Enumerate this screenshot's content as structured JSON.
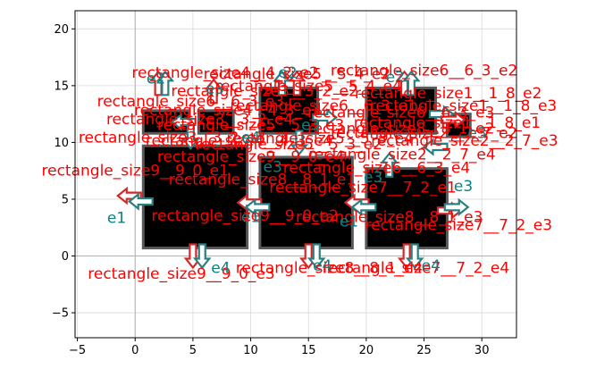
{
  "chart_data": {
    "type": "diagram",
    "grid": true,
    "xlim": [
      -5.2,
      33.0
    ],
    "ylim": [
      -7.2,
      21.6
    ],
    "xticks": [
      "−5",
      "0",
      "5",
      "10",
      "15",
      "20",
      "25",
      "30"
    ],
    "xtick_values": [
      -5,
      0,
      5,
      10,
      15,
      20,
      25,
      30
    ],
    "yticks": [
      "−5",
      "0",
      "5",
      "10",
      "15",
      "20"
    ],
    "ytick_values": [
      -5,
      0,
      5,
      10,
      15,
      20
    ],
    "colors": {
      "rect_fill": "#000000",
      "rect_edge": "#595959",
      "label": "#ff0000",
      "edge_label": "#0f7f7f",
      "arrow_red": "#d62728",
      "arrow_teal": "#2a8080",
      "grid": "#d9d9d9"
    },
    "rectangles": [
      {
        "x0": 0.7,
        "y0": 0.7,
        "x1": 9.7,
        "y1": 9.7
      },
      {
        "x0": 10.8,
        "y0": 0.7,
        "x1": 18.8,
        "y1": 8.7
      },
      {
        "x0": 20.0,
        "y0": 0.7,
        "x1": 27.0,
        "y1": 7.7
      },
      {
        "x0": 20.0,
        "y0": 10.8,
        "x1": 26.0,
        "y1": 14.8
      },
      {
        "x0": 10.8,
        "y0": 10.8,
        "x1": 15.8,
        "y1": 14.8
      },
      {
        "x0": 0.7,
        "y0": 10.8,
        "x1": 4.7,
        "y1": 12.8
      },
      {
        "x0": 5.5,
        "y0": 10.8,
        "x1": 8.5,
        "y1": 12.8
      },
      {
        "x0": 27.0,
        "y0": 10.5,
        "x1": 29.0,
        "y1": 12.5
      }
    ],
    "arrows": [
      {
        "x": -0.5,
        "y": 5.3,
        "dir": "left",
        "color": "red"
      },
      {
        "x": 0.5,
        "y": 4.8,
        "dir": "left",
        "color": "teal"
      },
      {
        "x": 5.0,
        "y": 0.0,
        "dir": "down",
        "color": "red"
      },
      {
        "x": 5.8,
        "y": 0.0,
        "dir": "down",
        "color": "teal"
      },
      {
        "x": 9.9,
        "y": 4.7,
        "dir": "left",
        "color": "red"
      },
      {
        "x": 10.6,
        "y": 4.3,
        "dir": "left",
        "color": "teal"
      },
      {
        "x": 15.0,
        "y": 0.0,
        "dir": "down",
        "color": "red"
      },
      {
        "x": 15.7,
        "y": 0.0,
        "dir": "down",
        "color": "teal"
      },
      {
        "x": 19.2,
        "y": 4.7,
        "dir": "left",
        "color": "red"
      },
      {
        "x": 19.8,
        "y": 4.3,
        "dir": "left",
        "color": "teal"
      },
      {
        "x": 23.5,
        "y": 0.0,
        "dir": "down",
        "color": "red"
      },
      {
        "x": 24.2,
        "y": 0.0,
        "dir": "down",
        "color": "teal"
      },
      {
        "x": 27.2,
        "y": 4.0,
        "dir": "right",
        "color": "red"
      },
      {
        "x": 27.8,
        "y": 4.3,
        "dir": "right",
        "color": "teal"
      },
      {
        "x": 2.0,
        "y": 15.2,
        "dir": "up",
        "color": "red"
      },
      {
        "x": 2.6,
        "y": 15.2,
        "dir": "up",
        "color": "teal"
      },
      {
        "x": 6.8,
        "y": 14.5,
        "dir": "up",
        "color": "red"
      },
      {
        "x": 12.7,
        "y": 15.2,
        "dir": "up",
        "color": "teal"
      },
      {
        "x": 14.0,
        "y": 15.2,
        "dir": "up",
        "color": "red"
      },
      {
        "x": 23.3,
        "y": 15.2,
        "dir": "up",
        "color": "red"
      },
      {
        "x": 23.9,
        "y": 15.2,
        "dir": "up",
        "color": "teal"
      },
      {
        "x": 26.5,
        "y": 12.5,
        "dir": "right",
        "color": "teal"
      },
      {
        "x": 27.5,
        "y": 12.0,
        "dir": "right",
        "color": "red"
      },
      {
        "x": 26.0,
        "y": 9.6,
        "dir": "left",
        "color": "teal"
      },
      {
        "x": 4.2,
        "y": 11.8,
        "dir": "left",
        "color": "teal"
      },
      {
        "x": 4.8,
        "y": 10.5,
        "dir": "down",
        "color": "teal"
      },
      {
        "x": 16.4,
        "y": 12.2,
        "dir": "right",
        "color": "teal"
      },
      {
        "x": 14.2,
        "y": 10.0,
        "dir": "down",
        "color": "teal"
      },
      {
        "x": 22.0,
        "y": 8.0,
        "dir": "up",
        "color": "teal"
      }
    ],
    "labels": [
      {
        "text": "rectangle_size4__4_2_e2",
        "x": 7.8,
        "y": 15.7,
        "color": "red"
      },
      {
        "text": "rectangle_size5__5_4_e2",
        "x": 14.0,
        "y": 15.6,
        "color": "red"
      },
      {
        "text": "e2",
        "x": 13.2,
        "y": 15.7,
        "color": "teal"
      },
      {
        "text": "rectangle_size6__6_3_e2",
        "x": 25.0,
        "y": 15.9,
        "color": "red"
      },
      {
        "text": "e2",
        "x": 1.8,
        "y": 15.2,
        "color": "teal"
      },
      {
        "text": "e2",
        "x": 22.5,
        "y": 15.3,
        "color": "teal"
      },
      {
        "text": "rectangle_size3__3_2_e2",
        "x": 11.2,
        "y": 14.1,
        "color": "red"
      },
      {
        "text": "e3",
        "x": 6.9,
        "y": 14.3,
        "color": "teal"
      },
      {
        "text": "rectangle_size6__6_3_e3",
        "x": 4.8,
        "y": 13.2,
        "color": "red"
      },
      {
        "text": "rectangle_size4__4_3_e3",
        "x": 8.0,
        "y": 12.4,
        "color": "red"
      },
      {
        "text": "rectangle_size5__5_3_e3",
        "x": 10.0,
        "y": 11.1,
        "color": "red"
      },
      {
        "text": "rectangle_size3__3_2_e4",
        "x": 5.6,
        "y": 11.6,
        "color": "red"
      },
      {
        "text": "rectangle_size4__4_3_e4",
        "x": 9.0,
        "y": 9.7,
        "color": "red"
      },
      {
        "text": "rectangle_size3__3_2_e3",
        "x": 3.2,
        "y": 10.0,
        "color": "red"
      },
      {
        "text": "rectangle_size9__9_0_e4",
        "x": 10.0,
        "y": 8.3,
        "color": "red"
      },
      {
        "text": "rectangle_size8__8_1_e1",
        "x": 11.0,
        "y": 6.3,
        "color": "red"
      },
      {
        "text": "rectangle_size7__7_2_e1",
        "x": 19.7,
        "y": 5.6,
        "color": "red"
      },
      {
        "text": "rectangle_size9__9_0_e1",
        "x": 0.0,
        "y": 7.1,
        "color": "red"
      },
      {
        "text": "rectangle_size5__5_3_e4",
        "x": 16.0,
        "y": 9.9,
        "color": "red"
      },
      {
        "text": "rectangle_size6__6_3_e1",
        "x": 16.3,
        "y": 12.8,
        "color": "red"
      },
      {
        "text": "rectangle_size5__5_3_e2",
        "x": 13.3,
        "y": 9.4,
        "color": "red"
      },
      {
        "text": "rectangle_size1__1_8_e2",
        "x": 27.1,
        "y": 13.9,
        "color": "red"
      },
      {
        "text": "rectangle_size1__1_8_e3",
        "x": 28.4,
        "y": 12.8,
        "color": "red"
      },
      {
        "text": "rectangle_size1__1_8_e1",
        "x": 27.0,
        "y": 11.3,
        "color": "red"
      },
      {
        "text": "rectangle_size2__2_7_e3",
        "x": 28.5,
        "y": 9.7,
        "color": "red"
      },
      {
        "text": "rectangle_size2__2_7_e4",
        "x": 23.1,
        "y": 8.5,
        "color": "red"
      },
      {
        "text": "rectangle_size2__2_7_e2",
        "x": 25.0,
        "y": 10.4,
        "color": "red"
      },
      {
        "text": "rectangle_size6__6_3_e4",
        "x": 20.9,
        "y": 7.3,
        "color": "red"
      },
      {
        "text": "rectangle_size8__8_1_e2",
        "x": 23.0,
        "y": 10.8,
        "color": "red"
      },
      {
        "text": "rectangle_size8__8_1_e3",
        "x": 22.0,
        "y": 3.0,
        "color": "red"
      },
      {
        "text": "rectangle_size7__7_2_e3",
        "x": 28.0,
        "y": 2.3,
        "color": "red"
      },
      {
        "text": "rectangle_size7__7_2_e4",
        "x": 24.3,
        "y": -1.5,
        "color": "red"
      },
      {
        "text": "rectangle_size8__8_1_e4",
        "x": 16.8,
        "y": -1.5,
        "color": "red"
      },
      {
        "text": "rectangle_size9__9_0_e2",
        "x": 9.5,
        "y": 3.1,
        "color": "red"
      },
      {
        "text": "rectangle_size9__9_0_e3",
        "x": 4.0,
        "y": -2.0,
        "color": "red"
      },
      {
        "text": "rectangle_size5__5_4_e4",
        "x": 15.0,
        "y": 14.5,
        "color": "red"
      },
      {
        "text": "rectangle_size6__6_3_e3",
        "x": 23.0,
        "y": 12.2,
        "color": "red"
      },
      {
        "text": "e1",
        "x": -1.6,
        "y": 2.9,
        "color": "teal"
      },
      {
        "text": "e4",
        "x": 7.4,
        "y": -1.5,
        "color": "teal"
      },
      {
        "text": "e3",
        "x": 11.9,
        "y": 7.4,
        "color": "teal"
      },
      {
        "text": "e1",
        "x": 10.0,
        "y": 3.0,
        "color": "teal"
      },
      {
        "text": "e4",
        "x": 16.2,
        "y": -1.3,
        "color": "teal"
      },
      {
        "text": "e1",
        "x": 18.5,
        "y": 2.6,
        "color": "teal"
      },
      {
        "text": "e4",
        "x": 25.6,
        "y": -1.3,
        "color": "teal"
      },
      {
        "text": "e3",
        "x": 28.4,
        "y": 5.7,
        "color": "teal"
      },
      {
        "text": "e3",
        "x": 20.6,
        "y": 6.5,
        "color": "teal"
      },
      {
        "text": "e3",
        "x": 15.2,
        "y": 11.1,
        "color": "teal"
      },
      {
        "text": "e3",
        "x": 29.6,
        "y": 10.4,
        "color": "teal"
      },
      {
        "text": "e4",
        "x": 10.0,
        "y": 10.0,
        "color": "teal"
      }
    ]
  }
}
